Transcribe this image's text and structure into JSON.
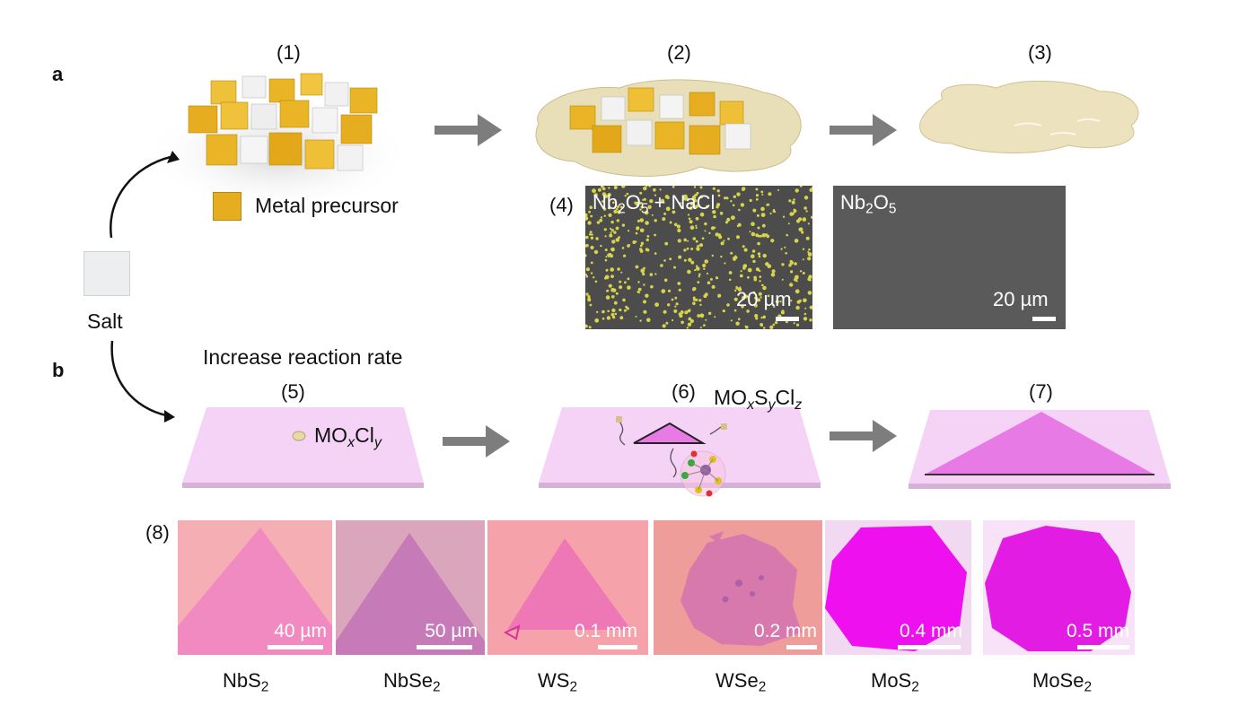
{
  "panels": {
    "a": "a",
    "b": "b"
  },
  "steps": {
    "s1": "(1)",
    "s2": "(2)",
    "s3": "(3)",
    "s4": "(4)",
    "s5": "(5)",
    "s6": "(6)",
    "s7": "(7)",
    "s8": "(8)"
  },
  "labels": {
    "metal_precursor": "Metal precursor",
    "salt": "Salt",
    "increase_rate": "Increase reaction rate"
  },
  "formulas": {
    "moxcly": {
      "a": "MO",
      "b": "x",
      "c": "Cl",
      "d": "y"
    },
    "moxsyclz": {
      "a": "MO",
      "b": "x",
      "c": "S",
      "d": "y",
      "e": "Cl",
      "f": "z"
    }
  },
  "sem": {
    "left": {
      "t1": "Nb",
      "t2": "2",
      "t3": "O",
      "t4": "5",
      "t5": " + NaCl",
      "scale": "20 µm"
    },
    "right": {
      "t1": "Nb",
      "t2": "2",
      "t3": "O",
      "t4": "5",
      "scale": "20 µm"
    }
  },
  "micrographs": [
    {
      "base": "NbS",
      "sub": "2",
      "scale": "40 µm",
      "bg": "#f5aeb3",
      "flake": "#f08ac0"
    },
    {
      "base": "NbSe",
      "sub": "2",
      "scale": "50 µm",
      "bg": "#d9a6bb",
      "flake": "#c77ab8"
    },
    {
      "base": "WS",
      "sub": "2",
      "scale": "0.1 mm",
      "bg": "#f5a2aa",
      "flake": "#ee78b5"
    },
    {
      "base": "WSe",
      "sub": "2",
      "scale": "0.2 mm",
      "bg": "#ef9d9a",
      "flake": "#d879ad"
    },
    {
      "base": "MoS",
      "sub": "2",
      "scale": "0.4 mm",
      "bg": "#f1d9f1",
      "flake": "#ee10ee"
    },
    {
      "base": "MoSe",
      "sub": "2",
      "scale": "0.5 mm",
      "bg": "#f7e2f7",
      "flake": "#e21ce2"
    }
  ],
  "colors": {
    "gold": "#e4b22c",
    "salt": "#e6e8ea",
    "substrate": "#f4d1f6",
    "flake": "#e77ae5",
    "arrow": "#7d7d7d"
  }
}
